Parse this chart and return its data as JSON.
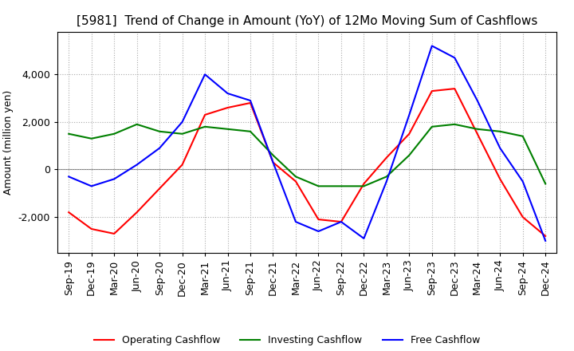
{
  "title": "[5981]  Trend of Change in Amount (YoY) of 12Mo Moving Sum of Cashflows",
  "ylabel": "Amount (million yen)",
  "x_labels": [
    "Sep-19",
    "Dec-19",
    "Mar-20",
    "Jun-20",
    "Sep-20",
    "Dec-20",
    "Mar-21",
    "Jun-21",
    "Sep-21",
    "Dec-21",
    "Mar-22",
    "Jun-22",
    "Sep-22",
    "Dec-22",
    "Mar-23",
    "Jun-23",
    "Sep-23",
    "Dec-23",
    "Mar-24",
    "Jun-24",
    "Sep-24",
    "Dec-24"
  ],
  "operating": [
    -1800,
    -2500,
    -2700,
    -1800,
    -800,
    200,
    2300,
    2600,
    2800,
    300,
    -500,
    -2100,
    -2200,
    -600,
    500,
    1500,
    3300,
    3400,
    1500,
    -400,
    -2000,
    -2800
  ],
  "investing": [
    1500,
    1300,
    1500,
    1900,
    1600,
    1500,
    1800,
    1700,
    1600,
    600,
    -300,
    -700,
    -700,
    -700,
    -300,
    600,
    1800,
    1900,
    1700,
    1600,
    1400,
    -600
  ],
  "free": [
    -300,
    -700,
    -400,
    200,
    900,
    2000,
    4000,
    3200,
    2900,
    300,
    -2200,
    -2600,
    -2200,
    -2900,
    -500,
    2300,
    5200,
    4700,
    2900,
    900,
    -500,
    -3000
  ],
  "ylim": [
    -3500,
    5800
  ],
  "yticks": [
    -2000,
    0,
    2000,
    4000
  ],
  "operating_color": "#ff0000",
  "investing_color": "#008000",
  "free_color": "#0000ff",
  "grid_color": "#aaaaaa",
  "background_color": "#ffffff",
  "title_fontsize": 11,
  "axis_fontsize": 9,
  "legend_fontsize": 9
}
